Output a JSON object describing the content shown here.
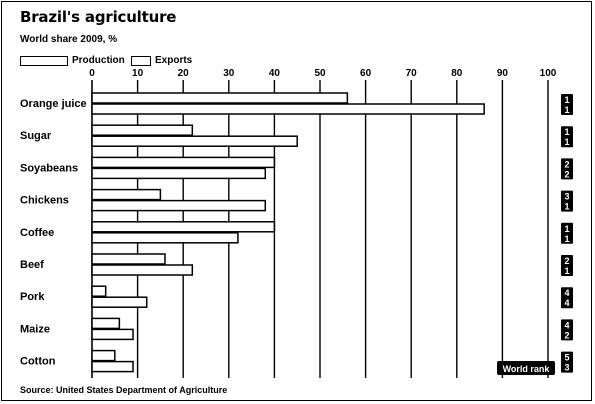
{
  "chart_data": {
    "type": "bar",
    "title": "Brazil's agriculture",
    "subtitle": "World share 2009, %",
    "categories": [
      "Orange juice",
      "Sugar",
      "Soyabeans",
      "Chickens",
      "Coffee",
      "Beef",
      "Pork",
      "Maize",
      "Cotton"
    ],
    "series": [
      {
        "name": "Production",
        "values": [
          56,
          22,
          40,
          15,
          40,
          16,
          3,
          6,
          5
        ]
      },
      {
        "name": "Exports",
        "values": [
          86,
          45,
          38,
          38,
          32,
          22,
          12,
          9,
          9
        ]
      }
    ],
    "xlim": [
      0,
      100
    ],
    "xticks": [
      "0",
      "10",
      "20",
      "30",
      "40",
      "50",
      "60",
      "70",
      "80",
      "90",
      "100"
    ],
    "grid": true,
    "legend_position": "top-left",
    "rank_badges": [
      [
        "1",
        "1"
      ],
      [
        "1",
        "1"
      ],
      [
        "2",
        "2"
      ],
      [
        "3",
        "1"
      ],
      [
        "1",
        "1"
      ],
      [
        "2",
        "1"
      ],
      [
        "4",
        "4"
      ],
      [
        "4",
        "2"
      ],
      [
        "5",
        "3"
      ]
    ],
    "annotation": "World rank",
    "source": "Source: United States Department of Agriculture"
  },
  "colors": {
    "ink": "#000000",
    "paper": "#ffffff"
  }
}
